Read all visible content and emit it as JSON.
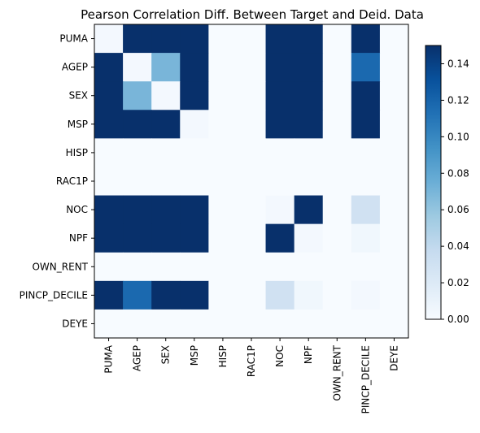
{
  "chart_data": {
    "type": "heatmap",
    "title": "Pearson Correlation Diff. Between Target and Deid. Data",
    "xlabel": "",
    "ylabel": "",
    "labels": [
      "PUMA",
      "AGEP",
      "SEX",
      "MSP",
      "HISP",
      "RAC1P",
      "NOC",
      "NPF",
      "OWN_RENT",
      "PINCP_DECILE",
      "DEYE"
    ],
    "values": [
      [
        0.003,
        0.15,
        0.15,
        0.15,
        0.0,
        0.0,
        0.15,
        0.15,
        0.0,
        0.15,
        0.0
      ],
      [
        0.15,
        0.003,
        0.07,
        0.15,
        0.0,
        0.0,
        0.15,
        0.15,
        0.0,
        0.117,
        0.0
      ],
      [
        0.15,
        0.07,
        0.003,
        0.15,
        0.0,
        0.0,
        0.15,
        0.15,
        0.0,
        0.15,
        0.0
      ],
      [
        0.15,
        0.15,
        0.15,
        0.003,
        0.0,
        0.0,
        0.15,
        0.15,
        0.0,
        0.15,
        0.0
      ],
      [
        0.0,
        0.0,
        0.0,
        0.0,
        0.0,
        0.0,
        0.0,
        0.0,
        0.0,
        0.0,
        0.0
      ],
      [
        0.0,
        0.0,
        0.0,
        0.0,
        0.0,
        0.0,
        0.0,
        0.0,
        0.0,
        0.0,
        0.0
      ],
      [
        0.15,
        0.15,
        0.15,
        0.15,
        0.0,
        0.0,
        0.003,
        0.15,
        0.0,
        0.03,
        0.0
      ],
      [
        0.15,
        0.15,
        0.15,
        0.15,
        0.0,
        0.0,
        0.15,
        0.003,
        0.0,
        0.005,
        0.0
      ],
      [
        0.0,
        0.0,
        0.0,
        0.0,
        0.0,
        0.0,
        0.0,
        0.0,
        0.0,
        0.0,
        0.0
      ],
      [
        0.15,
        0.117,
        0.15,
        0.15,
        0.0,
        0.0,
        0.03,
        0.005,
        0.0,
        0.003,
        0.0
      ],
      [
        0.0,
        0.0,
        0.0,
        0.0,
        0.0,
        0.0,
        0.0,
        0.0,
        0.0,
        0.0,
        0.0
      ]
    ],
    "colorbar": {
      "min": 0.0,
      "max": 0.15,
      "ticks": [
        "0.00",
        "0.02",
        "0.04",
        "0.06",
        "0.08",
        "0.10",
        "0.12",
        "0.14"
      ],
      "colormap": "Blues",
      "stops": [
        "#f7fbff",
        "#deebf7",
        "#c6dbef",
        "#9ecae1",
        "#6baed6",
        "#4292c6",
        "#2171b5",
        "#08519c",
        "#08306b"
      ]
    },
    "grid": false
  }
}
